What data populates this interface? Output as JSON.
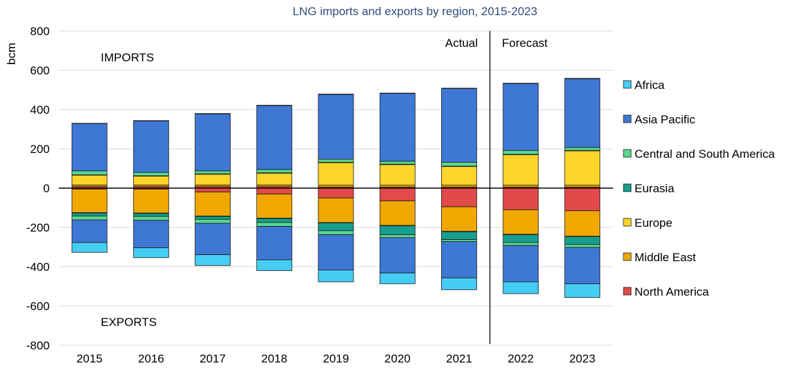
{
  "chart_data": {
    "type": "bar",
    "stacked": true,
    "title": "LNG imports and exports by region, 2015-2023",
    "ylabel": "bcm",
    "ylim": [
      -800,
      800
    ],
    "yticks": [
      800,
      600,
      400,
      200,
      0,
      -200,
      -400,
      -600,
      -800
    ],
    "grid": true,
    "legend_position": "right",
    "categories": [
      "2015",
      "2016",
      "2017",
      "2018",
      "2019",
      "2020",
      "2021",
      "2022",
      "2023"
    ],
    "annotations": {
      "imports": "IMPORTS",
      "exports": "EXPORTS",
      "actual": "Actual",
      "forecast": "Forecast"
    },
    "series": [
      {
        "name": "North America",
        "color": "#e24a4a",
        "imports": [
          8,
          8,
          8,
          8,
          5,
          5,
          5,
          5,
          5
        ],
        "exports": [
          -5,
          -5,
          -20,
          -30,
          -50,
          -65,
          -95,
          -110,
          -115
        ]
      },
      {
        "name": "Middle East",
        "color": "#f0a800",
        "imports": [
          8,
          8,
          8,
          8,
          10,
          10,
          10,
          10,
          10
        ],
        "exports": [
          -120,
          -122,
          -122,
          -123,
          -125,
          -125,
          -125,
          -125,
          -130
        ]
      },
      {
        "name": "Europe",
        "color": "#fdd42a",
        "imports": [
          50,
          45,
          55,
          60,
          115,
          105,
          95,
          155,
          175
        ],
        "exports": [
          -2,
          -2,
          -2,
          -2,
          -2,
          -2,
          -2,
          -2,
          -2
        ]
      },
      {
        "name": "Eurasia",
        "color": "#169e8e",
        "imports": [
          2,
          2,
          2,
          2,
          2,
          2,
          2,
          2,
          2
        ],
        "exports": [
          -15,
          -15,
          -15,
          -20,
          -40,
          -45,
          -40,
          -40,
          -40
        ]
      },
      {
        "name": "Central and South America",
        "color": "#58d88f",
        "imports": [
          20,
          17,
          15,
          17,
          15,
          15,
          20,
          20,
          15
        ],
        "exports": [
          -20,
          -20,
          -20,
          -20,
          -20,
          -15,
          -10,
          -15,
          -15
        ]
      },
      {
        "name": "Asia Pacific",
        "color": "#3f77d4",
        "imports": [
          240,
          262,
          290,
          325,
          330,
          345,
          375,
          340,
          350
        ],
        "exports": [
          -115,
          -140,
          -160,
          -170,
          -180,
          -180,
          -185,
          -185,
          -185
        ]
      },
      {
        "name": "Africa",
        "color": "#46cdf4",
        "imports": [
          2,
          2,
          2,
          2,
          2,
          2,
          2,
          2,
          2
        ],
        "exports": [
          -50,
          -50,
          -55,
          -55,
          -60,
          -55,
          -60,
          -60,
          -70
        ]
      }
    ],
    "legend_order": [
      "Africa",
      "Asia Pacific",
      "Central and South America",
      "Eurasia",
      "Europe",
      "Middle East",
      "North America"
    ]
  }
}
